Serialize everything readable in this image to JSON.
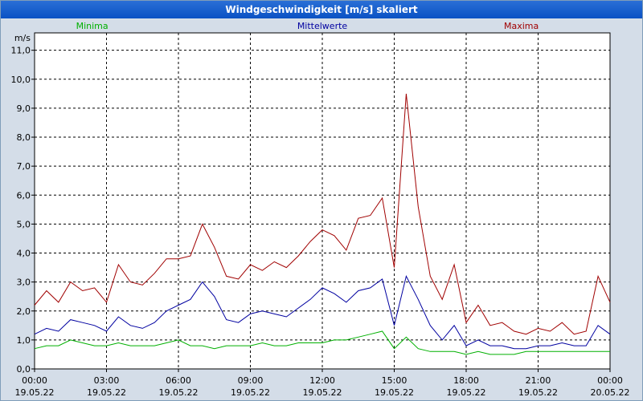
{
  "window": {
    "title": "Windgeschwindigkeit [m/s] skaliert"
  },
  "colors": {
    "minima": "#00b000",
    "mittelwerte": "#0000a0",
    "maxima": "#a00000",
    "grid": "#000000",
    "plot_bg": "#ffffff",
    "panel_bg": "#d4dde8"
  },
  "chart_data": {
    "type": "line",
    "title": "Windgeschwindigkeit [m/s] skaliert",
    "ylabel": "m/s",
    "xlabel": "",
    "ylim": [
      0,
      11.6
    ],
    "xlim_hours": [
      0,
      24
    ],
    "yticks": [
      "0,0",
      "1,0",
      "2,0",
      "3,0",
      "4,0",
      "5,0",
      "6,0",
      "7,0",
      "8,0",
      "9,0",
      "10,0",
      "11,0"
    ],
    "xticks": [
      {
        "time": "00:00",
        "date": "19.05.22"
      },
      {
        "time": "03:00",
        "date": "19.05.22"
      },
      {
        "time": "06:00",
        "date": "19.05.22"
      },
      {
        "time": "09:00",
        "date": "19.05.22"
      },
      {
        "time": "12:00",
        "date": "19.05.22"
      },
      {
        "time": "15:00",
        "date": "19.05.22"
      },
      {
        "time": "18:00",
        "date": "19.05.22"
      },
      {
        "time": "21:00",
        "date": "19.05.22"
      },
      {
        "time": "00:00",
        "date": "20.05.22"
      }
    ],
    "legend": [
      "Minima",
      "Mittelwerte",
      "Maxima"
    ],
    "x_hours": [
      0,
      0.5,
      1,
      1.5,
      2,
      2.5,
      3,
      3.5,
      4,
      4.5,
      5,
      5.5,
      6,
      6.5,
      7,
      7.5,
      8,
      8.5,
      9,
      9.5,
      10,
      10.5,
      11,
      11.5,
      12,
      12.5,
      13,
      13.5,
      14,
      14.5,
      15,
      15.5,
      16,
      16.5,
      17,
      17.5,
      18,
      18.5,
      19,
      19.5,
      20,
      20.5,
      21,
      21.5,
      22,
      22.5,
      23,
      23.5,
      24
    ],
    "series": [
      {
        "name": "Maxima",
        "values": [
          2.2,
          2.7,
          2.3,
          3.0,
          2.7,
          2.8,
          2.3,
          3.6,
          3.0,
          2.9,
          3.3,
          3.8,
          3.8,
          3.9,
          5.0,
          4.2,
          3.2,
          3.1,
          3.6,
          3.4,
          3.7,
          3.5,
          3.9,
          4.4,
          4.8,
          4.6,
          4.1,
          5.2,
          5.3,
          5.9,
          3.5,
          9.5,
          5.6,
          3.2,
          2.4,
          3.6,
          1.6,
          2.2,
          1.5,
          1.6,
          1.3,
          1.2,
          1.4,
          1.3,
          1.6,
          1.2,
          1.3,
          3.2,
          2.3
        ]
      },
      {
        "name": "Mittelwerte",
        "values": [
          1.2,
          1.4,
          1.3,
          1.7,
          1.6,
          1.5,
          1.3,
          1.8,
          1.5,
          1.4,
          1.6,
          2.0,
          2.2,
          2.4,
          3.0,
          2.5,
          1.7,
          1.6,
          1.9,
          2.0,
          1.9,
          1.8,
          2.1,
          2.4,
          2.8,
          2.6,
          2.3,
          2.7,
          2.8,
          3.1,
          1.5,
          3.2,
          2.4,
          1.5,
          1.0,
          1.5,
          0.8,
          1.0,
          0.8,
          0.8,
          0.7,
          0.7,
          0.8,
          0.8,
          0.9,
          0.8,
          0.8,
          1.5,
          1.2
        ]
      },
      {
        "name": "Minima",
        "values": [
          0.7,
          0.8,
          0.8,
          1.0,
          0.9,
          0.8,
          0.8,
          0.9,
          0.8,
          0.8,
          0.8,
          0.9,
          1.0,
          0.8,
          0.8,
          0.7,
          0.8,
          0.8,
          0.8,
          0.9,
          0.8,
          0.8,
          0.9,
          0.9,
          0.9,
          1.0,
          1.0,
          1.1,
          1.2,
          1.3,
          0.7,
          1.1,
          0.7,
          0.6,
          0.6,
          0.6,
          0.5,
          0.6,
          0.5,
          0.5,
          0.5,
          0.6,
          0.6,
          0.6,
          0.6,
          0.6,
          0.6,
          0.6,
          0.6
        ]
      }
    ]
  }
}
